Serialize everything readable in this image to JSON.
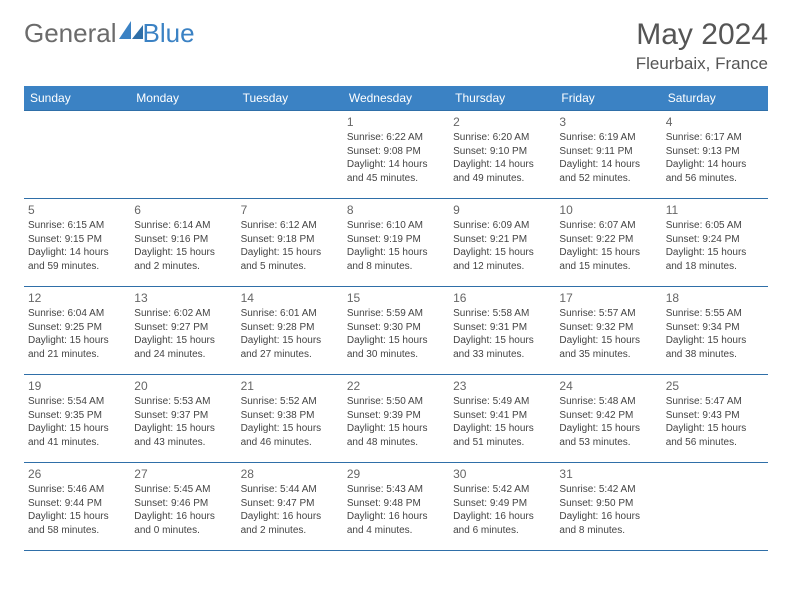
{
  "brand": {
    "part1": "General",
    "part2": "Blue"
  },
  "title": "May 2024",
  "location": "Fleurbaix, France",
  "colors": {
    "header_bg": "#3b82c4",
    "header_text": "#ffffff",
    "border": "#2f6fa8",
    "brand_gray": "#6b6b6b",
    "brand_blue": "#3b82c4",
    "text": "#444444"
  },
  "layout": {
    "columns": 7,
    "rows": 5
  },
  "day_names": [
    "Sunday",
    "Monday",
    "Tuesday",
    "Wednesday",
    "Thursday",
    "Friday",
    "Saturday"
  ],
  "weeks": [
    [
      null,
      null,
      null,
      {
        "n": "1",
        "sr": "6:22 AM",
        "ss": "9:08 PM",
        "dl": "14 hours and 45 minutes."
      },
      {
        "n": "2",
        "sr": "6:20 AM",
        "ss": "9:10 PM",
        "dl": "14 hours and 49 minutes."
      },
      {
        "n": "3",
        "sr": "6:19 AM",
        "ss": "9:11 PM",
        "dl": "14 hours and 52 minutes."
      },
      {
        "n": "4",
        "sr": "6:17 AM",
        "ss": "9:13 PM",
        "dl": "14 hours and 56 minutes."
      }
    ],
    [
      {
        "n": "5",
        "sr": "6:15 AM",
        "ss": "9:15 PM",
        "dl": "14 hours and 59 minutes."
      },
      {
        "n": "6",
        "sr": "6:14 AM",
        "ss": "9:16 PM",
        "dl": "15 hours and 2 minutes."
      },
      {
        "n": "7",
        "sr": "6:12 AM",
        "ss": "9:18 PM",
        "dl": "15 hours and 5 minutes."
      },
      {
        "n": "8",
        "sr": "6:10 AM",
        "ss": "9:19 PM",
        "dl": "15 hours and 8 minutes."
      },
      {
        "n": "9",
        "sr": "6:09 AM",
        "ss": "9:21 PM",
        "dl": "15 hours and 12 minutes."
      },
      {
        "n": "10",
        "sr": "6:07 AM",
        "ss": "9:22 PM",
        "dl": "15 hours and 15 minutes."
      },
      {
        "n": "11",
        "sr": "6:05 AM",
        "ss": "9:24 PM",
        "dl": "15 hours and 18 minutes."
      }
    ],
    [
      {
        "n": "12",
        "sr": "6:04 AM",
        "ss": "9:25 PM",
        "dl": "15 hours and 21 minutes."
      },
      {
        "n": "13",
        "sr": "6:02 AM",
        "ss": "9:27 PM",
        "dl": "15 hours and 24 minutes."
      },
      {
        "n": "14",
        "sr": "6:01 AM",
        "ss": "9:28 PM",
        "dl": "15 hours and 27 minutes."
      },
      {
        "n": "15",
        "sr": "5:59 AM",
        "ss": "9:30 PM",
        "dl": "15 hours and 30 minutes."
      },
      {
        "n": "16",
        "sr": "5:58 AM",
        "ss": "9:31 PM",
        "dl": "15 hours and 33 minutes."
      },
      {
        "n": "17",
        "sr": "5:57 AM",
        "ss": "9:32 PM",
        "dl": "15 hours and 35 minutes."
      },
      {
        "n": "18",
        "sr": "5:55 AM",
        "ss": "9:34 PM",
        "dl": "15 hours and 38 minutes."
      }
    ],
    [
      {
        "n": "19",
        "sr": "5:54 AM",
        "ss": "9:35 PM",
        "dl": "15 hours and 41 minutes."
      },
      {
        "n": "20",
        "sr": "5:53 AM",
        "ss": "9:37 PM",
        "dl": "15 hours and 43 minutes."
      },
      {
        "n": "21",
        "sr": "5:52 AM",
        "ss": "9:38 PM",
        "dl": "15 hours and 46 minutes."
      },
      {
        "n": "22",
        "sr": "5:50 AM",
        "ss": "9:39 PM",
        "dl": "15 hours and 48 minutes."
      },
      {
        "n": "23",
        "sr": "5:49 AM",
        "ss": "9:41 PM",
        "dl": "15 hours and 51 minutes."
      },
      {
        "n": "24",
        "sr": "5:48 AM",
        "ss": "9:42 PM",
        "dl": "15 hours and 53 minutes."
      },
      {
        "n": "25",
        "sr": "5:47 AM",
        "ss": "9:43 PM",
        "dl": "15 hours and 56 minutes."
      }
    ],
    [
      {
        "n": "26",
        "sr": "5:46 AM",
        "ss": "9:44 PM",
        "dl": "15 hours and 58 minutes."
      },
      {
        "n": "27",
        "sr": "5:45 AM",
        "ss": "9:46 PM",
        "dl": "16 hours and 0 minutes."
      },
      {
        "n": "28",
        "sr": "5:44 AM",
        "ss": "9:47 PM",
        "dl": "16 hours and 2 minutes."
      },
      {
        "n": "29",
        "sr": "5:43 AM",
        "ss": "9:48 PM",
        "dl": "16 hours and 4 minutes."
      },
      {
        "n": "30",
        "sr": "5:42 AM",
        "ss": "9:49 PM",
        "dl": "16 hours and 6 minutes."
      },
      {
        "n": "31",
        "sr": "5:42 AM",
        "ss": "9:50 PM",
        "dl": "16 hours and 8 minutes."
      },
      null
    ]
  ],
  "labels": {
    "sunrise": "Sunrise: ",
    "sunset": "Sunset: ",
    "daylight": "Daylight: "
  }
}
